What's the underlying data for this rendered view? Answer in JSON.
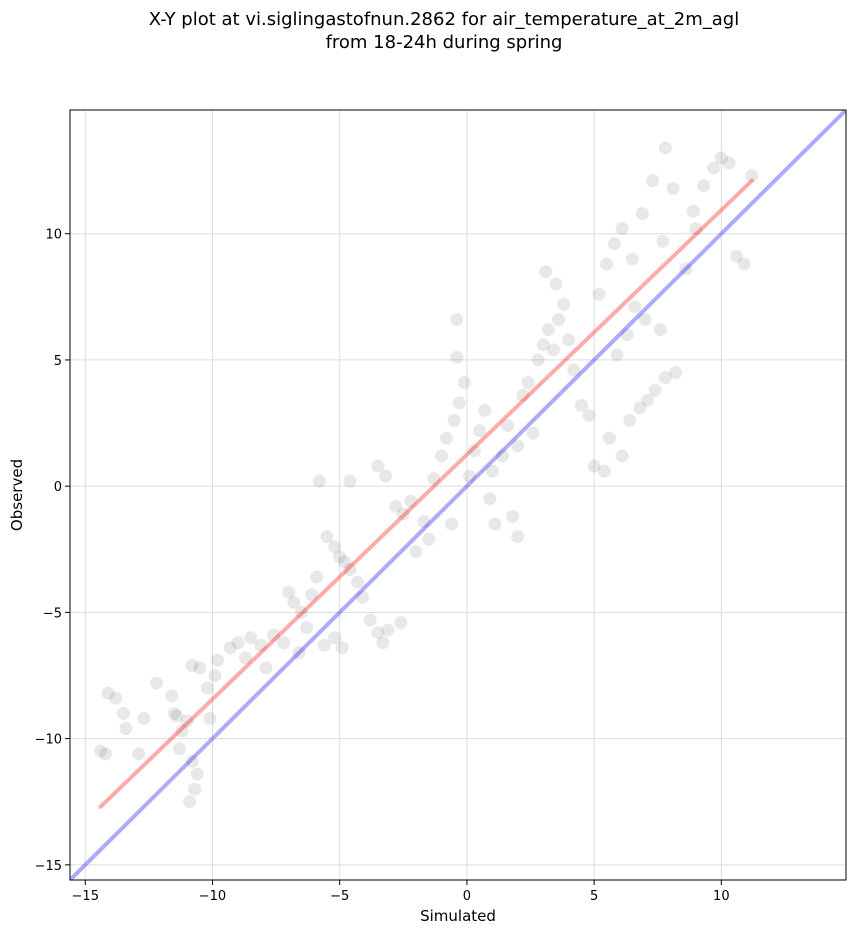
{
  "chart_data": {
    "type": "scatter",
    "title": "X-Y plot at vi.siglingastofnun.2862 for air_temperature_at_2m_agl",
    "subtitle": "from 18-24h during spring",
    "xlabel": "Simulated",
    "ylabel": "Observed",
    "xlim": [
      -15.6,
      14.9
    ],
    "ylim": [
      -15.6,
      14.9
    ],
    "xticks": [
      -15,
      -10,
      -5,
      0,
      5,
      10
    ],
    "yticks": [
      -15,
      -10,
      -5,
      0,
      5,
      10
    ],
    "xtick_labels": [
      "−15",
      "−10",
      "−5",
      "0",
      "5",
      "10"
    ],
    "ytick_labels": [
      "−15",
      "−10",
      "−5",
      "0",
      "5",
      "10"
    ],
    "grid": true,
    "point_color": "#000000",
    "point_opacity": 0.09,
    "lines": [
      {
        "role": "regression fit",
        "color": "#ff0000",
        "x": [
          -14.4,
          11.2
        ],
        "y": [
          -12.7,
          12.1
        ]
      },
      {
        "role": "1:1 reference",
        "color": "#0000ff",
        "x": [
          -15.6,
          14.9
        ],
        "y": [
          -15.6,
          14.9
        ]
      }
    ],
    "points": [
      [
        -14.4,
        -10.5
      ],
      [
        -14.2,
        -10.6
      ],
      [
        -14.1,
        -8.2
      ],
      [
        -13.8,
        -8.4
      ],
      [
        -13.5,
        -9.0
      ],
      [
        -13.4,
        -9.6
      ],
      [
        -12.9,
        -10.6
      ],
      [
        -12.7,
        -9.2
      ],
      [
        -12.2,
        -7.8
      ],
      [
        -11.6,
        -8.3
      ],
      [
        -11.4,
        -9.1
      ],
      [
        -11.2,
        -9.7
      ],
      [
        -11.0,
        -9.3
      ],
      [
        -10.9,
        -12.5
      ],
      [
        -10.7,
        -12.0
      ],
      [
        -10.6,
        -11.4
      ],
      [
        -10.8,
        -7.1
      ],
      [
        -10.5,
        -7.2
      ],
      [
        -10.2,
        -8.0
      ],
      [
        -9.9,
        -7.5
      ],
      [
        -11.3,
        -10.4
      ],
      [
        -10.1,
        -9.2
      ],
      [
        -11.5,
        -9.0
      ],
      [
        -10.8,
        -10.9
      ],
      [
        -9.8,
        -6.9
      ],
      [
        -9.3,
        -6.4
      ],
      [
        -9.0,
        -6.2
      ],
      [
        -8.7,
        -6.8
      ],
      [
        -8.5,
        -6.0
      ],
      [
        -8.1,
        -6.3
      ],
      [
        -7.6,
        -5.9
      ],
      [
        -7.2,
        -6.2
      ],
      [
        -7.0,
        -4.2
      ],
      [
        -6.8,
        -4.6
      ],
      [
        -6.5,
        -5.0
      ],
      [
        -6.3,
        -5.6
      ],
      [
        -6.1,
        -4.3
      ],
      [
        -5.9,
        -3.6
      ],
      [
        -5.6,
        -6.3
      ],
      [
        -5.2,
        -6.0
      ],
      [
        -5.0,
        -2.8
      ],
      [
        -4.8,
        -3.0
      ],
      [
        -4.6,
        -3.3
      ],
      [
        -4.3,
        -3.8
      ],
      [
        -4.1,
        -4.4
      ],
      [
        -3.8,
        -5.3
      ],
      [
        -3.5,
        -5.8
      ],
      [
        -3.1,
        -5.7
      ],
      [
        -5.5,
        -2.0
      ],
      [
        -5.2,
        -2.4
      ],
      [
        -5.8,
        0.2
      ],
      [
        -4.6,
        0.2
      ],
      [
        -3.5,
        0.8
      ],
      [
        -3.2,
        0.4
      ],
      [
        -2.8,
        -0.8
      ],
      [
        -2.5,
        -1.1
      ],
      [
        -2.2,
        -0.6
      ],
      [
        -2.0,
        -2.6
      ],
      [
        -1.7,
        -1.4
      ],
      [
        -1.5,
        -2.1
      ],
      [
        -1.3,
        0.3
      ],
      [
        -1.0,
        1.2
      ],
      [
        -0.8,
        1.9
      ],
      [
        -0.5,
        2.6
      ],
      [
        -0.3,
        3.3
      ],
      [
        -0.1,
        4.1
      ],
      [
        -0.4,
        5.1
      ],
      [
        -0.4,
        6.6
      ],
      [
        0.1,
        0.4
      ],
      [
        0.3,
        1.4
      ],
      [
        0.5,
        2.2
      ],
      [
        0.7,
        3.0
      ],
      [
        0.9,
        -0.5
      ],
      [
        1.1,
        -1.5
      ],
      [
        1.4,
        1.2
      ],
      [
        1.6,
        2.4
      ],
      [
        1.8,
        -1.2
      ],
      [
        2.0,
        -2.0
      ],
      [
        2.2,
        3.6
      ],
      [
        2.4,
        4.1
      ],
      [
        2.6,
        2.1
      ],
      [
        2.8,
        5.0
      ],
      [
        3.0,
        5.6
      ],
      [
        3.2,
        6.2
      ],
      [
        3.4,
        5.4
      ],
      [
        3.6,
        6.6
      ],
      [
        3.8,
        7.2
      ],
      [
        4.0,
        5.8
      ],
      [
        3.1,
        8.5
      ],
      [
        3.5,
        8.0
      ],
      [
        4.2,
        4.6
      ],
      [
        4.5,
        3.2
      ],
      [
        4.8,
        2.8
      ],
      [
        5.0,
        0.8
      ],
      [
        5.4,
        0.6
      ],
      [
        5.6,
        1.9
      ],
      [
        6.1,
        1.2
      ],
      [
        6.4,
        2.6
      ],
      [
        6.8,
        3.1
      ],
      [
        7.1,
        3.4
      ],
      [
        7.4,
        3.8
      ],
      [
        7.8,
        4.3
      ],
      [
        8.2,
        4.5
      ],
      [
        5.2,
        7.6
      ],
      [
        5.5,
        8.8
      ],
      [
        5.8,
        9.6
      ],
      [
        6.1,
        10.2
      ],
      [
        6.5,
        9.0
      ],
      [
        6.9,
        10.8
      ],
      [
        7.3,
        12.1
      ],
      [
        7.7,
        9.7
      ],
      [
        8.1,
        11.8
      ],
      [
        8.6,
        8.6
      ],
      [
        9.0,
        10.2
      ],
      [
        9.3,
        11.9
      ],
      [
        9.7,
        12.6
      ],
      [
        10.0,
        13.0
      ],
      [
        10.3,
        12.8
      ],
      [
        10.6,
        9.1
      ],
      [
        10.9,
        8.8
      ],
      [
        11.2,
        12.3
      ],
      [
        7.8,
        13.4
      ],
      [
        8.9,
        10.9
      ],
      [
        6.6,
        7.1
      ],
      [
        7.0,
        6.6
      ],
      [
        7.6,
        6.2
      ],
      [
        5.9,
        5.2
      ],
      [
        6.3,
        6.0
      ],
      [
        -2.6,
        -5.4
      ],
      [
        -3.3,
        -6.2
      ],
      [
        -4.9,
        -6.4
      ],
      [
        -6.6,
        -6.6
      ],
      [
        -7.9,
        -7.2
      ],
      [
        -0.6,
        -1.5
      ],
      [
        1.0,
        0.6
      ],
      [
        2.0,
        1.6
      ]
    ]
  }
}
